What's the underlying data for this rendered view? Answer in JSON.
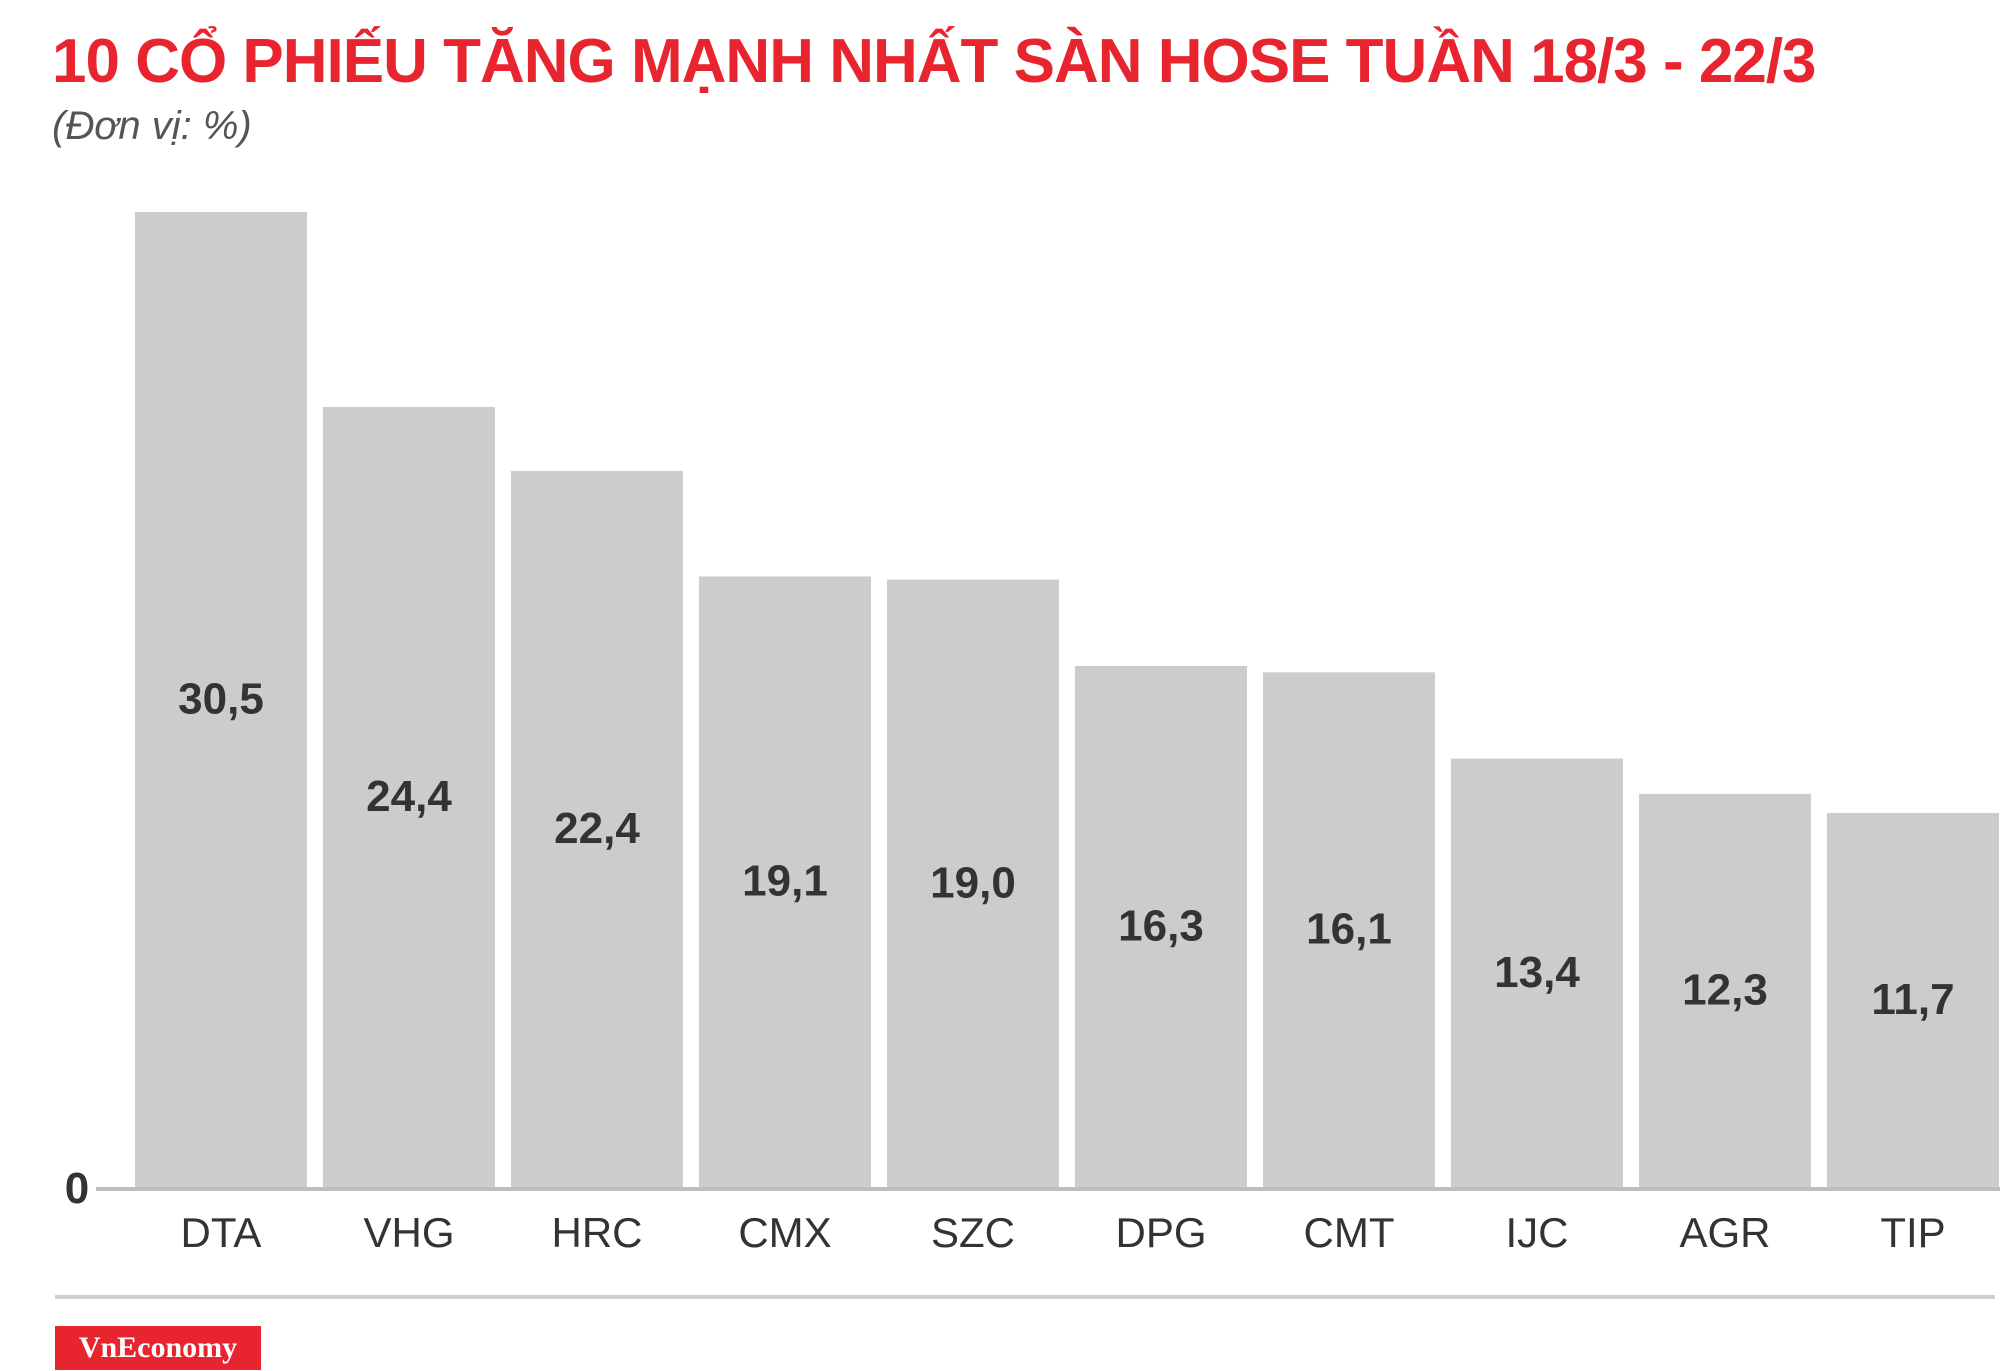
{
  "title": "10 CỔ PHIẾU TĂNG MẠNH NHẤT SÀN HOSE TUẦN 18/3 - 22/3",
  "subtitle": "(Đơn vị: %)",
  "brand": "VnEconomy",
  "colors": {
    "title": "#e8252f",
    "bar": "#cdcccc",
    "value_label": "#333333",
    "axis": "#bdbdbd",
    "brand_bg": "#e8252f"
  },
  "chart_data": {
    "type": "bar",
    "title": "10 CỔ PHIẾU TĂNG MẠNH NHẤT SÀN HOSE TUẦN 18/3 - 22/3",
    "subtitle": "(Đơn vị: %)",
    "categories": [
      "DTA",
      "VHG",
      "HRC",
      "CMX",
      "SZC",
      "DPG",
      "CMT",
      "IJC",
      "AGR",
      "TIP"
    ],
    "values": [
      30.5,
      24.4,
      22.4,
      19.1,
      19.0,
      16.3,
      16.1,
      13.4,
      12.3,
      11.7
    ],
    "value_labels": [
      "30,5",
      "24,4",
      "22,4",
      "19,1",
      "19,0",
      "16,3",
      "16,1",
      "13,4",
      "12,3",
      "11,7"
    ],
    "y_tick_labels": [
      "0"
    ],
    "ylim": [
      0,
      30.5
    ],
    "grid": false,
    "legend": "none"
  }
}
